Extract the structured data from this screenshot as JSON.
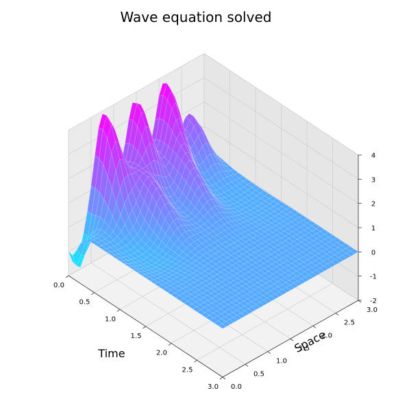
{
  "chart_data": {
    "type": "surface",
    "title": "Wave equation solved",
    "xlabel": "Time",
    "ylabel": "Space",
    "zlabel": "",
    "xlim": [
      0,
      3
    ],
    "ylim": [
      0,
      3
    ],
    "zlim": [
      -2,
      4
    ],
    "x_ticks": [
      "0.0",
      "0.5",
      "1.0",
      "1.5",
      "2.0",
      "2.5",
      "3.0"
    ],
    "y_ticks": [
      "0.0",
      "0.5",
      "1.0",
      "1.5",
      "2.0",
      "2.5",
      "3.0"
    ],
    "z_ticks": [
      "-2",
      "-1",
      "0",
      "1",
      "2",
      "3",
      "4"
    ],
    "grid": true,
    "colormap": "cool",
    "color_low": "#00ffff",
    "color_high": "#ff00ff",
    "peaks": [
      {
        "x": 0.05,
        "y": 0.75,
        "z": 3.9
      },
      {
        "x": 0.05,
        "y": 1.45,
        "z": 3.7
      },
      {
        "x": 0.05,
        "y": 2.1,
        "z": 3.6
      },
      {
        "x": 0.05,
        "y": 2.65,
        "z": 1.9
      },
      {
        "x": 0.6,
        "y": 1.1,
        "z": 1.6
      },
      {
        "x": 0.6,
        "y": 1.9,
        "z": 1.5
      }
    ],
    "trough": {
      "x": 0.05,
      "y": 0.15,
      "z": -1.8
    }
  }
}
